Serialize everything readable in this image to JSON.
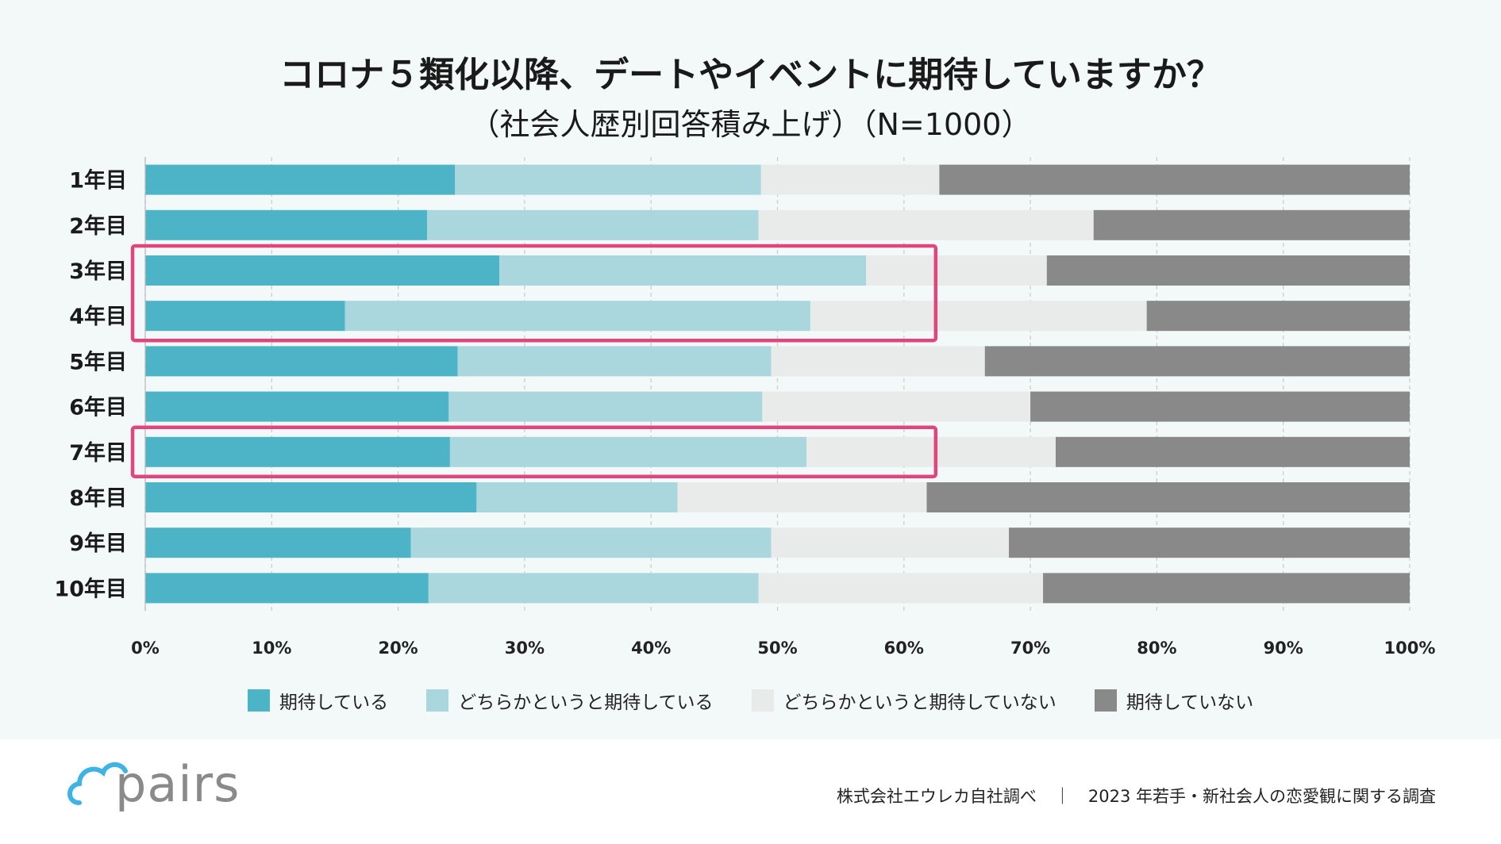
{
  "chart_data": {
    "type": "bar",
    "orientation": "horizontal",
    "stacked": true,
    "title": "コロナ５類化以降、デートやイベントに期待していますか？",
    "subtitle": "（社会人歴別回答積み上げ）（N=1000）",
    "categories": [
      "1年目",
      "2年目",
      "3年目",
      "4年目",
      "5年目",
      "6年目",
      "7年目",
      "8年目",
      "9年目",
      "10年目"
    ],
    "series": [
      {
        "name": "期待している",
        "color": "#4db3c6",
        "values": [
          24.5,
          22.3,
          28.0,
          15.8,
          24.7,
          24.0,
          24.1,
          26.2,
          21.0,
          22.4
        ]
      },
      {
        "name": "どちらかというと期待している",
        "color": "#aad6de",
        "values": [
          24.2,
          26.2,
          29.0,
          36.8,
          24.8,
          24.8,
          28.2,
          15.9,
          28.5,
          26.1
        ]
      },
      {
        "name": "どちらかというと期待していない",
        "color": "#e9ebea",
        "values": [
          14.1,
          26.5,
          14.3,
          26.6,
          16.9,
          21.2,
          19.7,
          19.7,
          18.8,
          22.5
        ]
      },
      {
        "name": "期待していない",
        "color": "#898989",
        "values": [
          37.2,
          25.0,
          28.7,
          20.8,
          33.6,
          30.0,
          28.0,
          38.2,
          31.7,
          29.0
        ]
      }
    ],
    "xlim": [
      0,
      100
    ],
    "xticks": [
      "0%",
      "10%",
      "20%",
      "30%",
      "40%",
      "50%",
      "60%",
      "70%",
      "80%",
      "90%",
      "100%"
    ],
    "grid": true,
    "legend_position": "bottom",
    "highlight_color": "#e0457b",
    "highlights": [
      [
        "3年目",
        "4年目"
      ],
      [
        "7年目"
      ]
    ],
    "highlight_extent": 60
  },
  "brand": {
    "logo_text": "pairs",
    "logo_color": "#3db4e3"
  },
  "footer": {
    "source": "株式会社エウレカ自社調べ",
    "separator": "｜",
    "survey": "2023 年若手・新社会人の恋愛観に関する調査"
  }
}
